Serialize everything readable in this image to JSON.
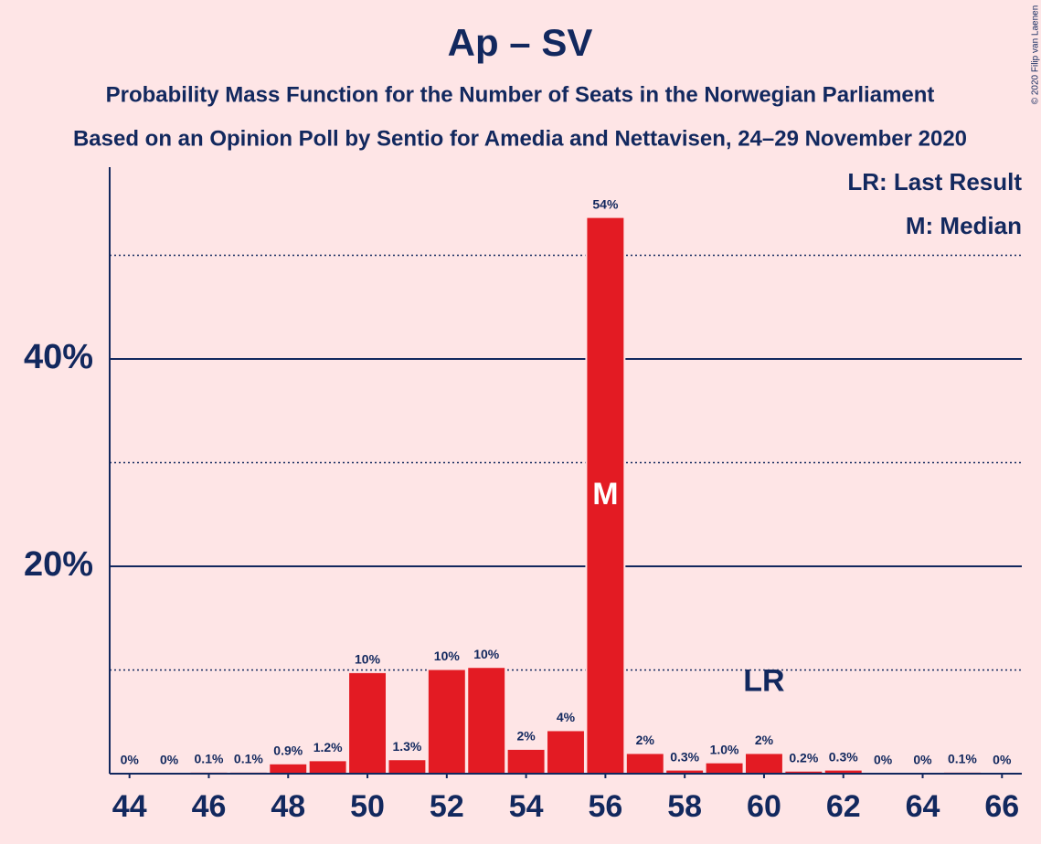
{
  "chart_data": {
    "type": "bar",
    "title": "Ap – SV",
    "subtitle": [
      "Probability Mass Function for the Number of Seats in the Norwegian Parliament",
      "Based on an Opinion Poll by Sentio for Amedia and Nettavisen, 24–29 November 2020"
    ],
    "credit": "© 2020 Filip van Laenen",
    "x": [
      44,
      45,
      46,
      47,
      48,
      49,
      50,
      51,
      52,
      53,
      54,
      55,
      56,
      57,
      58,
      59,
      60,
      61,
      62,
      63,
      64,
      65,
      66
    ],
    "values": [
      0,
      0,
      0.1,
      0.1,
      0.9,
      1.2,
      9.7,
      1.3,
      10.0,
      10.2,
      2.3,
      4.1,
      53.6,
      1.9,
      0.3,
      1.0,
      1.9,
      0.2,
      0.3,
      0,
      0,
      0.1,
      0
    ],
    "value_labels": [
      "0%",
      "0%",
      "0.1%",
      "0.1%",
      "0.9%",
      "1.2%",
      "10%",
      "1.3%",
      "10%",
      "10%",
      "2%",
      "4%",
      "54%",
      "2%",
      "0.3%",
      "1.0%",
      "2%",
      "0.2%",
      "0.3%",
      "0%",
      "0%",
      "0.1%",
      "0%"
    ],
    "color": "#e31b23",
    "xlim": [
      43.5,
      66.5
    ],
    "xticks": [
      44,
      46,
      48,
      50,
      52,
      54,
      56,
      58,
      60,
      62,
      64,
      66
    ],
    "ylim": [
      0,
      58.5
    ],
    "yticks": [
      {
        "value": 20,
        "label": "20%"
      },
      {
        "value": 40,
        "label": "40%"
      }
    ],
    "minor_yticks": [
      10,
      30,
      50
    ],
    "grid": true,
    "markers": [
      {
        "x": 56,
        "label": "M"
      },
      {
        "x": 60,
        "label": "LR"
      }
    ],
    "legend_notes": [
      "LR: Last Result",
      "M: Median"
    ]
  }
}
